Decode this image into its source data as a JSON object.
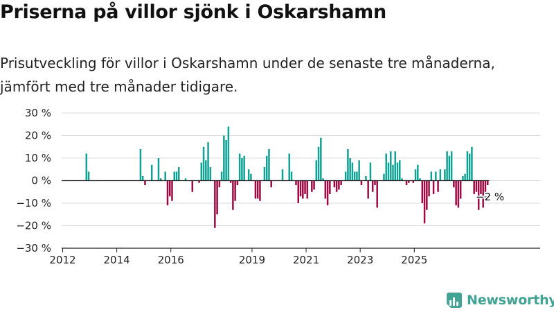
{
  "title": "Priserna på villor sjönk i Oskarshamn",
  "subtitle": "Prisutveckling för villor i Oskarshamn under de senaste tre månaderna, jämfört med tre månader tidigare.",
  "brand": "Newsworthy",
  "colors": {
    "positive": "#12a093",
    "negative": "#9b0a42",
    "brand": "#40a394"
  },
  "chart_data": {
    "type": "bar",
    "title": "Priserna på villor sjönk i Oskarshamn",
    "xlabel": "",
    "ylabel": "",
    "x_start": "2012-01",
    "ylim": [
      -30,
      30
    ],
    "yticks": [
      30,
      20,
      10,
      0,
      -10,
      -20,
      -30
    ],
    "ytick_labels": [
      "30 %",
      "20 %",
      "10 %",
      "0 %",
      "−10 %",
      "−20 %",
      "−30 %"
    ],
    "xticks": [
      "2012",
      "2014",
      "2016",
      "2019",
      "2021",
      "2023",
      "2025"
    ],
    "grid": true,
    "annotation": "−2 %",
    "last_value": -2,
    "values": [
      0,
      0,
      0,
      0,
      0,
      0,
      0,
      0,
      0,
      0,
      12,
      4,
      0,
      0,
      0,
      0,
      0,
      0,
      0,
      0,
      0,
      0,
      0,
      0,
      0,
      0,
      0,
      0,
      0,
      0,
      0,
      0,
      0,
      0,
      14,
      2,
      -2,
      0,
      0,
      7,
      0,
      0,
      10,
      1,
      0,
      4,
      -11,
      -7,
      -9,
      4,
      4,
      6,
      0,
      0,
      1,
      0,
      0,
      -5,
      0,
      0,
      -1,
      8,
      15,
      9,
      17,
      6,
      0,
      -21,
      -15,
      -3,
      4,
      20,
      18,
      24,
      -1,
      -13,
      -9,
      -2,
      12,
      10,
      11,
      0,
      5,
      3,
      0,
      -8,
      -8,
      -9,
      0,
      6,
      11,
      14,
      -3,
      0,
      0,
      0,
      0,
      5,
      0,
      0,
      12,
      4,
      0,
      -2,
      -10,
      -7,
      -8,
      -6,
      -8,
      0,
      -5,
      -4,
      9,
      15,
      19,
      1,
      -8,
      -11,
      -6,
      0,
      -3,
      -5,
      -4,
      -2,
      0,
      4,
      14,
      10,
      8,
      4,
      4,
      9,
      -2,
      0,
      2,
      -8,
      8,
      -5,
      -2,
      -12,
      0,
      0,
      3,
      12,
      8,
      13,
      7,
      13,
      8,
      9,
      1,
      0,
      -2,
      -1,
      0,
      -1,
      5,
      7,
      1,
      -10,
      -19,
      -13,
      -7,
      4,
      -6,
      4,
      -5,
      5,
      0,
      5,
      13,
      11,
      13,
      -3,
      -11,
      -12,
      -8,
      2,
      3,
      13,
      12,
      15,
      -6,
      -5,
      -13,
      -6,
      -12,
      -5,
      -2
    ]
  }
}
